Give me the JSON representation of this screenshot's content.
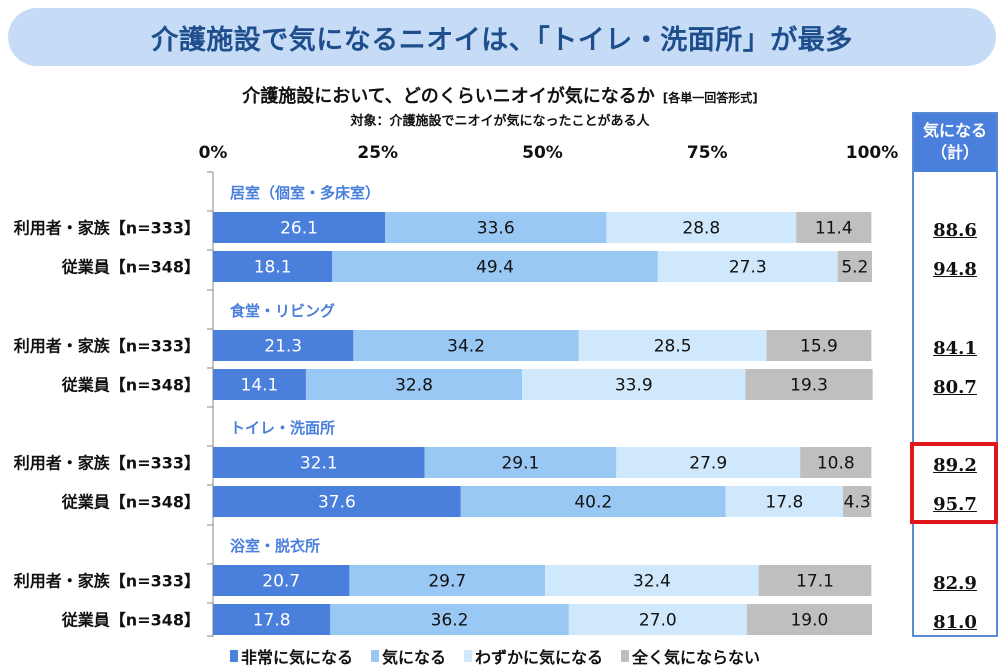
{
  "banner": {
    "title": "介護施設で気になるニオイは、「トイレ・洗面所」が最多"
  },
  "subtitle": {
    "text": "介護施設において、どのくらいニオイが気になるか",
    "note": "[各単一回答形式]"
  },
  "target": {
    "text": "対象：介護施設でニオイが気になったことがある人"
  },
  "right_panel": {
    "header_line1": "気になる",
    "header_line2": "（計）"
  },
  "chart_data": {
    "type": "bar",
    "orientation": "horizontal-stacked-100",
    "title": "介護施設において、どのくらいニオイが気になるか",
    "xlim": [
      0,
      100
    ],
    "x_ticks": [
      "0%",
      "25%",
      "50%",
      "75%",
      "100%"
    ],
    "series_names": [
      "非常に気になる",
      "気になる",
      "わずかに気になる",
      "全く気にならない"
    ],
    "series_colors": [
      "#4a7fdc",
      "#99c8f5",
      "#cfe8fb",
      "#bfbfbf"
    ],
    "groups": [
      {
        "name": "居室（個室・多床室）",
        "rows": [
          {
            "label": "利用者・家族【n=333】",
            "values": [
              26.1,
              33.6,
              28.8,
              11.4
            ],
            "total": "88.6"
          },
          {
            "label": "従業員【n=348】",
            "values": [
              18.1,
              49.4,
              27.3,
              5.2
            ],
            "total": "94.8"
          }
        ]
      },
      {
        "name": "食堂・リビング",
        "rows": [
          {
            "label": "利用者・家族【n=333】",
            "values": [
              21.3,
              34.2,
              28.5,
              15.9
            ],
            "total": "84.1"
          },
          {
            "label": "従業員【n=348】",
            "values": [
              14.1,
              32.8,
              33.9,
              19.3
            ],
            "total": "80.7"
          }
        ]
      },
      {
        "name": "トイレ・洗面所",
        "highlight": true,
        "rows": [
          {
            "label": "利用者・家族【n=333】",
            "values": [
              32.1,
              29.1,
              27.9,
              10.8
            ],
            "total": "89.2"
          },
          {
            "label": "従業員【n=348】",
            "values": [
              37.6,
              40.2,
              17.8,
              4.3
            ],
            "total": "95.7"
          }
        ]
      },
      {
        "name": "浴室・脱衣所",
        "rows": [
          {
            "label": "利用者・家族【n=333】",
            "values": [
              20.7,
              29.7,
              32.4,
              17.1
            ],
            "total": "82.9"
          },
          {
            "label": "従業員【n=348】",
            "values": [
              17.8,
              36.2,
              27.0,
              19.0
            ],
            "total": "81.0"
          }
        ]
      }
    ],
    "legend_position": "bottom"
  }
}
